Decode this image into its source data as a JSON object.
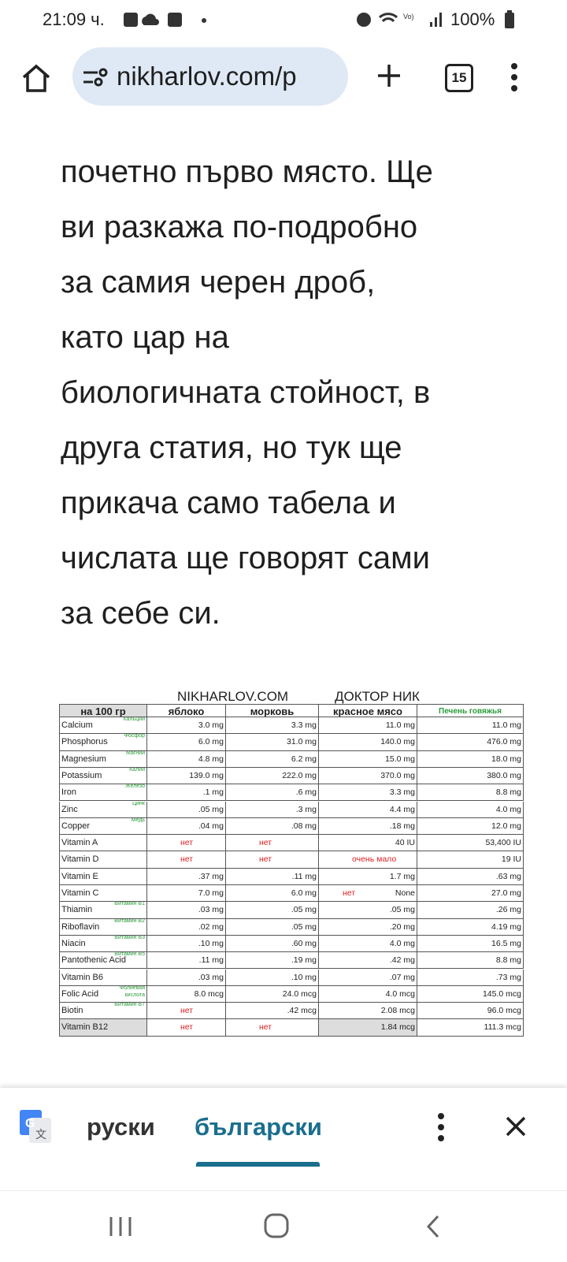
{
  "status_bar": {
    "time": "21:09 ч.",
    "battery": "100%"
  },
  "browser": {
    "url": "nikharlov.com/p",
    "tabs": "15"
  },
  "article": {
    "lines": [
      "почетно първо място. Ще",
      "ви разкажа по-подробно",
      "за самия черен дроб,",
      "като цар на",
      "биологичната стойност, в",
      "друга статия, но тук ще",
      "прикача само табела и",
      "числата ще говорят сами",
      "за себе си."
    ]
  },
  "table": {
    "title_left": "NIKHARLOV.COM",
    "title_right": "ДОКТОР НИК",
    "header": [
      "на 100 гр",
      "яблоко",
      "морковь",
      "красное мясо",
      {
        "text": "Печень говяжья",
        "color": "#2a9d3a"
      }
    ],
    "rows": [
      {
        "name": "Calcium",
        "ru": "Кальций",
        "cells": [
          "3.0 mg",
          "3.3 mg",
          "11.0 mg",
          "11.0 mg"
        ]
      },
      {
        "name": "Phosphorus",
        "ru": "Фосфор",
        "cells": [
          "6.0 mg",
          "31.0 mg",
          "140.0 mg",
          "476.0 mg"
        ]
      },
      {
        "name": "Magnesium",
        "ru": "Магний",
        "cells": [
          "4.8 mg",
          "6.2 mg",
          "15.0 mg",
          "18.0 mg"
        ]
      },
      {
        "name": "Potassium",
        "ru": "Калий",
        "cells": [
          "139.0 mg",
          "222.0 mg",
          "370.0 mg",
          "380.0 mg"
        ]
      },
      {
        "name": "Iron",
        "ru": "Железо",
        "cells": [
          ".1 mg",
          ".6 mg",
          "3.3 mg",
          "8.8 mg"
        ]
      },
      {
        "name": "Zinc",
        "ru": "Цинк",
        "cells": [
          ".05 mg",
          ".3 mg",
          "4.4 mg",
          "4.0 mg"
        ]
      },
      {
        "name": "Copper",
        "ru": "Медь",
        "cells": [
          ".04 mg",
          ".08 mg",
          ".18 mg",
          "12.0 mg"
        ]
      },
      {
        "name": "Vitamin A",
        "cells": [
          {
            "text": "нет",
            "color": "#e02020"
          },
          {
            "text": "нет",
            "color": "#e02020"
          },
          "40 IU",
          "53,400 IU"
        ]
      },
      {
        "name": "Vitamin D",
        "cells": [
          {
            "text": "нет",
            "color": "#e02020"
          },
          {
            "text": "нет",
            "color": "#e02020"
          },
          {
            "text": "очень мало",
            "color": "#e02020"
          },
          "19 IU"
        ]
      },
      {
        "name": "Vitamin E",
        "cells": [
          ".37 mg",
          ".11 mg",
          "1.7 mg",
          ".63 mg"
        ]
      },
      {
        "name": "Vitamin C",
        "cells": [
          "7.0 mg",
          "6.0 mg",
          {
            "text": "None",
            "note": "нет",
            "color": "#e02020"
          },
          "27.0 mg"
        ]
      },
      {
        "name": "Thiamin",
        "ru": "Витамин B1",
        "cells": [
          ".03 mg",
          ".05 mg",
          ".05 mg",
          ".26 mg"
        ]
      },
      {
        "name": "Riboflavin",
        "ru": "Витамин B2",
        "cells": [
          ".02 mg",
          ".05 mg",
          ".20 mg",
          "4.19 mg"
        ]
      },
      {
        "name": "Niacin",
        "ru": "Витамин B3",
        "cells": [
          ".10 mg",
          ".60 mg",
          "4.0 mg",
          "16.5 mg"
        ]
      },
      {
        "name": "Pantothenic Acid",
        "ru": "Витамин B5",
        "cells": [
          ".11 mg",
          ".19 mg",
          ".42 mg",
          "8.8 mg"
        ]
      },
      {
        "name": "Vitamin B6",
        "cells": [
          ".03 mg",
          ".10 mg",
          ".07 mg",
          ".73 mg"
        ]
      },
      {
        "name": "Folic Acid",
        "ru": "Фолиевая кислота",
        "cells": [
          "8.0 mcg",
          "24.0 mcg",
          "4.0 mcg",
          "145.0 mcg"
        ]
      },
      {
        "name": "Biotin",
        "ru": "Витамин B7",
        "cells": [
          {
            "text": "нет",
            "color": "#e02020"
          },
          ".42 mcg",
          "2.08 mcg",
          "96.0 mcg"
        ]
      },
      {
        "name": "Vitamin B12",
        "cells": [
          {
            "text": "нет",
            "color": "#e02020"
          },
          {
            "text": "нет",
            "color": "#e02020"
          },
          "1.84 mcg",
          "111.3 mcg"
        ]
      }
    ]
  },
  "translate_bar": {
    "source": "руски",
    "target": "български"
  }
}
